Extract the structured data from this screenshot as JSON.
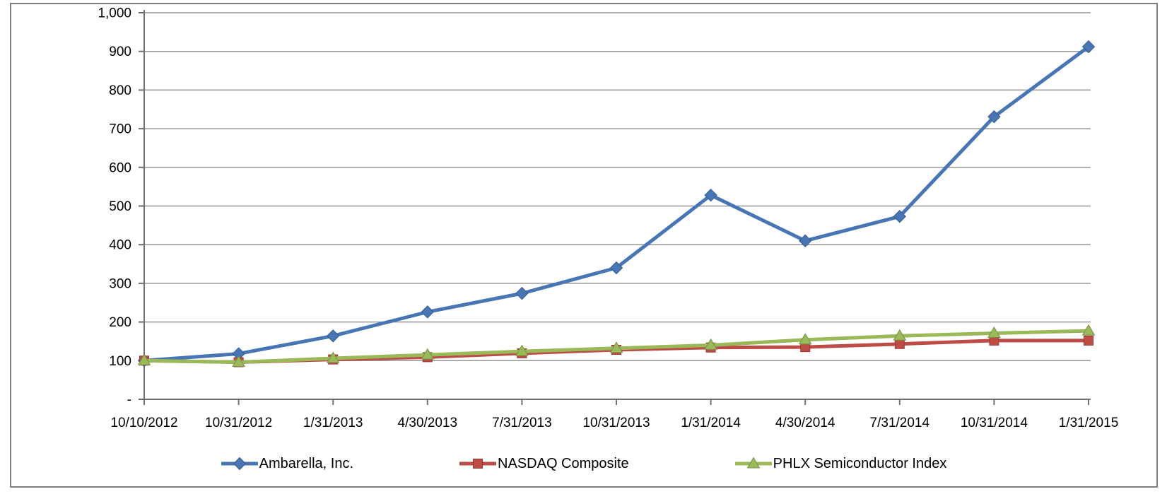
{
  "chart_data": {
    "type": "line",
    "title": "",
    "xlabel": "",
    "ylabel": "",
    "categories": [
      "10/10/2012",
      "10/31/2012",
      "1/31/2013",
      "4/30/2013",
      "7/31/2013",
      "10/31/2013",
      "1/31/2014",
      "4/30/2014",
      "7/31/2014",
      "10/31/2014",
      "1/31/2015"
    ],
    "series": [
      {
        "name": "Ambarella, Inc.",
        "color": "#4876B5",
        "marker": "diamond",
        "values": [
          100,
          118,
          164,
          226,
          274,
          340,
          528,
          410,
          473,
          731,
          912
        ]
      },
      {
        "name": "NASDAQ Composite",
        "color": "#BF4B47",
        "marker": "square",
        "values": [
          100,
          96,
          103,
          109,
          119,
          128,
          134,
          135,
          143,
          152,
          152
        ]
      },
      {
        "name": "PHLX Semiconductor Index",
        "color": "#9ABA59",
        "marker": "triangle",
        "values": [
          100,
          96,
          106,
          115,
          124,
          132,
          140,
          154,
          164,
          171,
          177
        ]
      }
    ],
    "ylim": [
      0,
      1000
    ],
    "ytick_interval": 100,
    "ytick_labels": [
      "-",
      "100",
      "200",
      "300",
      "400",
      "500",
      "600",
      "700",
      "800",
      "900",
      "1,000"
    ],
    "grid": true,
    "legend_position": "bottom"
  },
  "colors": {
    "gridline": "#969696",
    "axis": "#6f6f6f",
    "frame": "#7f7f7f",
    "text": "#000000",
    "background": "#ffffff"
  }
}
